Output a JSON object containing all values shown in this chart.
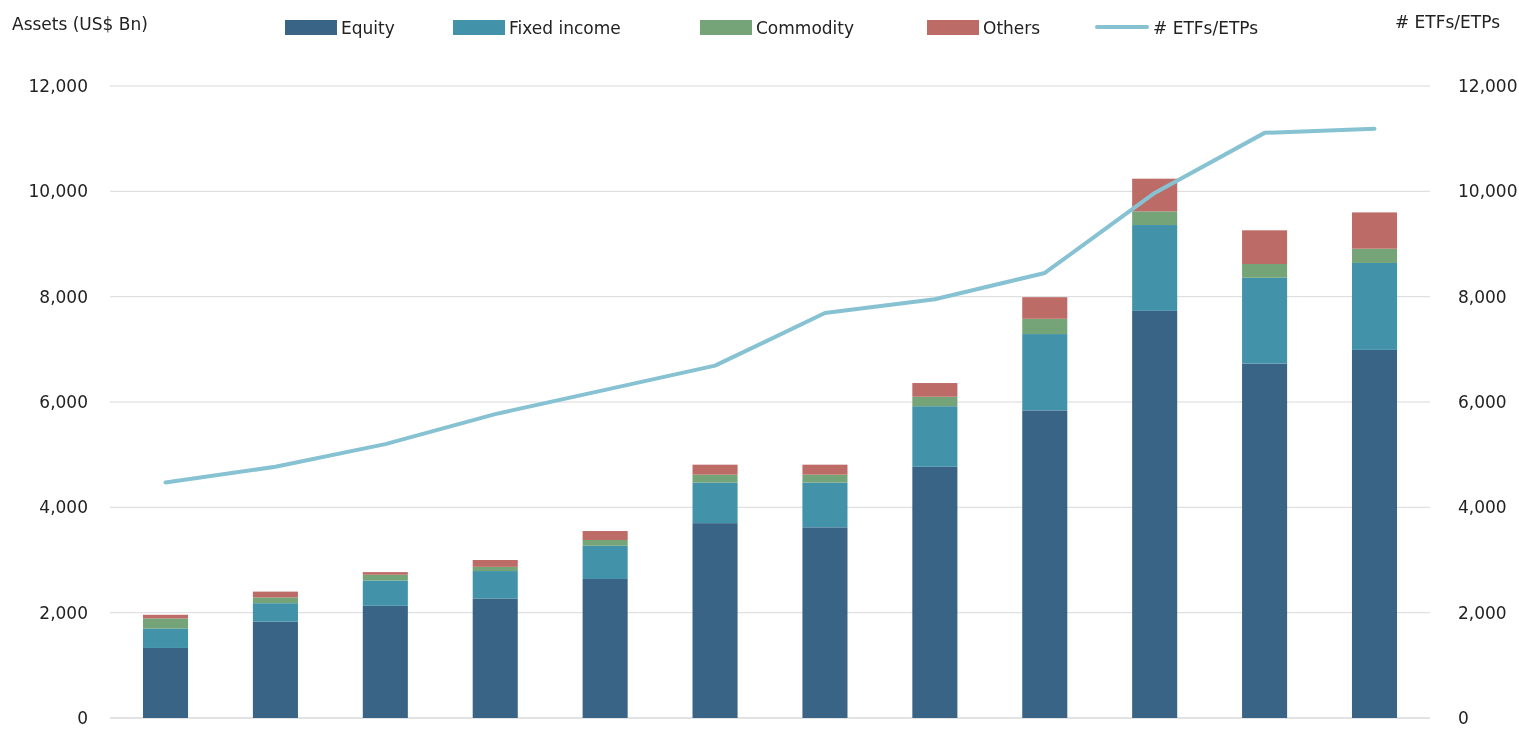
{
  "chart_data": {
    "type": "bar",
    "stacked": true,
    "ylabel": "Assets (US$ Bn)",
    "y2label": "# ETFs/ETPs",
    "legend": "top",
    "grid": "y",
    "categories": [
      null,
      null,
      null,
      null,
      null,
      null,
      null,
      null,
      null,
      null,
      null,
      null
    ],
    "ylim": [
      0,
      12000
    ],
    "yticks": [
      {
        "value": 0,
        "label": "0"
      },
      {
        "value": 2000,
        "label": "2,000"
      },
      {
        "value": 4000,
        "label": "4,000"
      },
      {
        "value": 6000,
        "label": "6,000"
      },
      {
        "value": 8000,
        "label": "8,000"
      },
      {
        "value": 10000,
        "label": "10,000"
      },
      {
        "value": 12000,
        "label": "12,000"
      }
    ],
    "y2lim": [
      0,
      12000
    ],
    "y2ticks": [
      {
        "value": 0,
        "label": "0"
      },
      {
        "value": 2000,
        "label": "2,000"
      },
      {
        "value": 4000,
        "label": "4,000"
      },
      {
        "value": 6000,
        "label": "6,000"
      },
      {
        "value": 8000,
        "label": "8,000"
      },
      {
        "value": 10000,
        "label": "10,000"
      },
      {
        "value": 12000,
        "label": "12,000"
      }
    ],
    "series": [
      {
        "name": "Equity",
        "color": "#3a6485",
        "values": [
          1330,
          1830,
          2130,
          2270,
          2640,
          3700,
          3620,
          4770,
          5840,
          7730,
          6730,
          6990
        ]
      },
      {
        "name": "Fixed income",
        "color": "#4293aa",
        "values": [
          370,
          350,
          480,
          520,
          630,
          770,
          850,
          1150,
          1450,
          1630,
          1630,
          1650
        ]
      },
      {
        "name": "Commodity",
        "color": "#74a477",
        "values": [
          190,
          110,
          110,
          80,
          110,
          150,
          150,
          180,
          290,
          260,
          260,
          270
        ]
      },
      {
        "name": "Others",
        "color": "#bd6b67",
        "values": [
          70,
          110,
          50,
          130,
          170,
          190,
          190,
          260,
          410,
          620,
          640,
          690
        ]
      },
      {
        "name": "# ETFs/ETPs",
        "type": "line",
        "axis": "y2",
        "color": "#86c2d2",
        "values": [
          4470,
          4770,
          5200,
          5770,
          6230,
          6690,
          7690,
          7950,
          8450,
          9970,
          11110,
          11190
        ]
      }
    ]
  }
}
